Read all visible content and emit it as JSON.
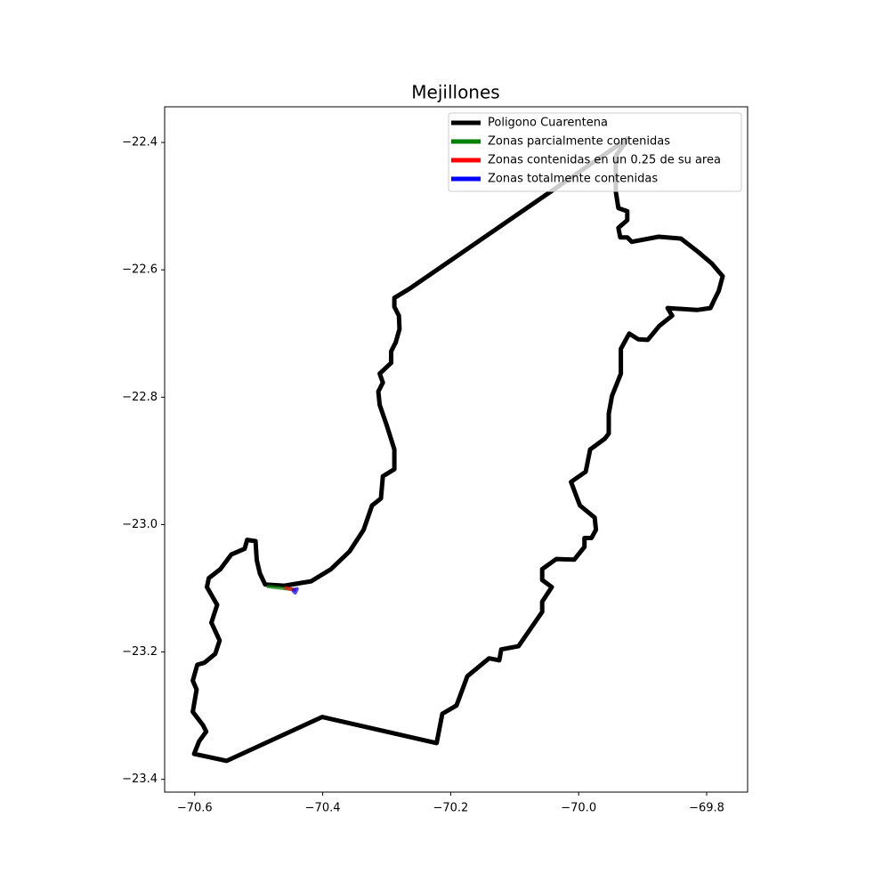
{
  "chart_data": {
    "type": "line",
    "title": "Mejillones",
    "xlim": [
      -70.647,
      -69.736
    ],
    "ylim": [
      -23.42,
      -22.344
    ],
    "xticks": [
      {
        "value": -70.6,
        "label": "−70.6"
      },
      {
        "value": -70.4,
        "label": "−70.4"
      },
      {
        "value": -70.2,
        "label": "−70.2"
      },
      {
        "value": -70.0,
        "label": "−70.0"
      },
      {
        "value": -69.8,
        "label": "−69.8"
      }
    ],
    "yticks": [
      {
        "value": -22.4,
        "label": "−22.4"
      },
      {
        "value": -22.6,
        "label": "−22.6"
      },
      {
        "value": -22.8,
        "label": "−22.8"
      },
      {
        "value": -23.0,
        "label": "−23.0"
      },
      {
        "value": -23.2,
        "label": "−23.2"
      },
      {
        "value": -23.4,
        "label": "−23.4"
      }
    ],
    "legend": "upper right",
    "series": [
      {
        "name": "Poligono Cuarentena",
        "color": "#000000",
        "x": [
          -69.922,
          -70.265,
          -70.288,
          -70.288,
          -70.281,
          -70.28,
          -70.286,
          -70.293,
          -70.293,
          -70.311,
          -70.306,
          -70.313,
          -70.311,
          -70.3,
          -70.288,
          -70.288,
          -70.306,
          -70.309,
          -70.323,
          -70.336,
          -70.358,
          -70.387,
          -70.418,
          -70.46,
          -70.49,
          -70.498,
          -70.503,
          -70.505,
          -70.518,
          -70.522,
          -70.543,
          -70.56,
          -70.578,
          -70.581,
          -70.565,
          -70.574,
          -70.561,
          -70.568,
          -70.585,
          -70.596,
          -70.603,
          -70.597,
          -70.603,
          -70.587,
          -70.582,
          -70.593,
          -70.601,
          -70.55,
          -70.401,
          -70.222,
          -70.213,
          -70.191,
          -70.174,
          -70.14,
          -70.124,
          -70.121,
          -70.094,
          -70.057,
          -70.057,
          -70.042,
          -70.057,
          -70.057,
          -70.035,
          -70.007,
          -69.991,
          -69.991,
          -69.98,
          -69.973,
          -69.975,
          -69.998,
          -70.012,
          -69.989,
          -69.982,
          -69.959,
          -69.953,
          -69.953,
          -69.948,
          -69.934,
          -69.934,
          -69.921,
          -69.907,
          -69.892,
          -69.874,
          -69.854,
          -69.861,
          -69.815,
          -69.794,
          -69.789,
          -69.781,
          -69.775,
          -69.792,
          -69.813,
          -69.84,
          -69.875,
          -69.917,
          -69.924,
          -69.935,
          -69.938,
          -69.924,
          -69.924,
          -69.938,
          -69.942,
          -69.942,
          -69.922
        ],
        "y": [
          -22.393,
          -22.63,
          -22.644,
          -22.658,
          -22.672,
          -22.693,
          -22.714,
          -22.728,
          -22.746,
          -22.763,
          -22.777,
          -22.791,
          -22.812,
          -22.844,
          -22.882,
          -22.913,
          -22.924,
          -22.959,
          -22.97,
          -23.008,
          -23.042,
          -23.07,
          -23.089,
          -23.096,
          -23.094,
          -23.077,
          -23.056,
          -23.026,
          -23.024,
          -23.038,
          -23.047,
          -23.07,
          -23.084,
          -23.098,
          -23.126,
          -23.154,
          -23.182,
          -23.203,
          -23.217,
          -23.22,
          -23.245,
          -23.259,
          -23.294,
          -23.315,
          -23.325,
          -23.34,
          -23.36,
          -23.371,
          -23.302,
          -23.343,
          -23.297,
          -23.284,
          -23.238,
          -23.21,
          -23.213,
          -23.196,
          -23.191,
          -23.137,
          -23.121,
          -23.098,
          -23.087,
          -23.07,
          -23.054,
          -23.055,
          -23.035,
          -23.021,
          -23.021,
          -23.008,
          -22.989,
          -22.97,
          -22.933,
          -22.917,
          -22.882,
          -22.865,
          -22.857,
          -22.826,
          -22.798,
          -22.763,
          -22.724,
          -22.7,
          -22.709,
          -22.71,
          -22.688,
          -22.672,
          -22.66,
          -22.663,
          -22.66,
          -22.649,
          -22.633,
          -22.61,
          -22.59,
          -22.572,
          -22.551,
          -22.548,
          -22.556,
          -22.549,
          -22.549,
          -22.534,
          -22.522,
          -22.508,
          -22.503,
          -22.477,
          -22.421,
          -22.393
        ]
      },
      {
        "name": "Zonas parcialmente contenidas",
        "color": "#008000",
        "x": [
          -70.487,
          -70.445
        ],
        "y": [
          -23.097,
          -23.102
        ]
      },
      {
        "name": "Zonas contenidas en un 0.25 de su area",
        "color": "#ff0000",
        "x": [
          -70.46,
          -70.441
        ],
        "y": [
          -23.099,
          -23.103
        ]
      },
      {
        "name": "Zonas totalmente contenidas",
        "color": "#0000ff",
        "x": [
          -70.447,
          -70.44,
          -70.443,
          -70.447
        ],
        "y": [
          -23.103,
          -23.101,
          -23.107,
          -23.103
        ]
      }
    ]
  }
}
